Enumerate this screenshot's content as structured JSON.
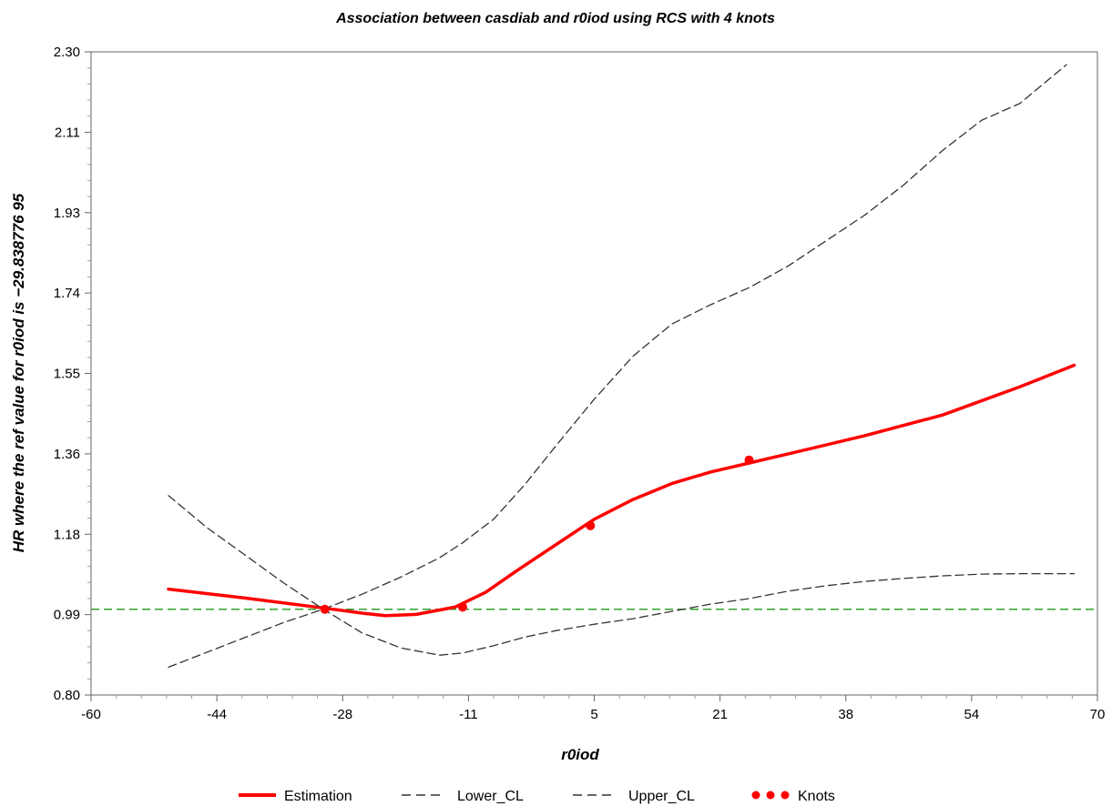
{
  "chart_data": {
    "type": "line",
    "title": "Association between casdiab and r0iod using RCS with 4 knots",
    "xlabel": "r0iod",
    "ylabel": "HR where the ref value for r0iod is  −29.838776 95",
    "xlim": [
      -60,
      70
    ],
    "ylim": [
      0.8,
      2.3
    ],
    "x_ticks": [
      "-60",
      "-44",
      "-28",
      "-11",
      "5",
      "21",
      "38",
      "54",
      "70"
    ],
    "y_ticks": [
      "0.80",
      "0.99",
      "1.18",
      "1.36",
      "1.55",
      "1.74",
      "1.93",
      "2.11",
      "2.30"
    ],
    "reference_line": {
      "y": 1.0,
      "color": "#33a02c",
      "style": "dashed"
    },
    "legend_position": "bottom",
    "series": [
      {
        "name": "Estimation",
        "color": "#ff0000",
        "style": "solid",
        "x": [
          -50,
          -40,
          -30,
          -25,
          -22,
          -18,
          -13,
          -9,
          -5,
          0,
          5,
          10,
          15,
          20,
          25,
          30,
          40,
          50,
          60,
          67
        ],
        "y": [
          1.047,
          1.026,
          1.003,
          0.991,
          0.985,
          0.988,
          1.005,
          1.04,
          1.09,
          1.15,
          1.21,
          1.256,
          1.293,
          1.32,
          1.341,
          1.362,
          1.405,
          1.453,
          1.519,
          1.569
        ]
      },
      {
        "name": "Lower_CL",
        "color": "#333333",
        "style": "dashed",
        "x": [
          -50,
          -45,
          -40,
          -35,
          -30,
          -25,
          -20,
          -15,
          -12,
          -8,
          -4,
          0,
          5,
          10,
          15,
          20,
          25,
          30,
          35,
          40,
          45,
          50,
          55,
          60,
          67
        ],
        "y": [
          1.265,
          1.19,
          1.125,
          1.06,
          1.0,
          0.945,
          0.91,
          0.893,
          0.898,
          0.915,
          0.935,
          0.95,
          0.965,
          0.978,
          0.995,
          1.012,
          1.025,
          1.042,
          1.055,
          1.065,
          1.072,
          1.078,
          1.082,
          1.083,
          1.083
        ]
      },
      {
        "name": "Upper_CL",
        "color": "#333333",
        "style": "dashed",
        "x": [
          -50,
          -45,
          -40,
          -35,
          -30,
          -25,
          -20,
          -15,
          -12,
          -8,
          -4,
          0,
          5,
          10,
          15,
          20,
          25,
          30,
          35,
          40,
          45,
          50,
          55,
          60,
          66
        ],
        "y": [
          0.865,
          0.9,
          0.935,
          0.97,
          1.0,
          1.035,
          1.075,
          1.12,
          1.155,
          1.21,
          1.29,
          1.38,
          1.49,
          1.59,
          1.665,
          1.71,
          1.75,
          1.8,
          1.86,
          1.92,
          1.99,
          2.07,
          2.14,
          2.18,
          2.27
        ]
      }
    ],
    "knots": {
      "name": "Knots",
      "color": "#ff0000",
      "x": [
        -29.8,
        -12,
        4.5,
        25
      ],
      "y": [
        1.0,
        1.005,
        1.195,
        1.348
      ]
    }
  }
}
